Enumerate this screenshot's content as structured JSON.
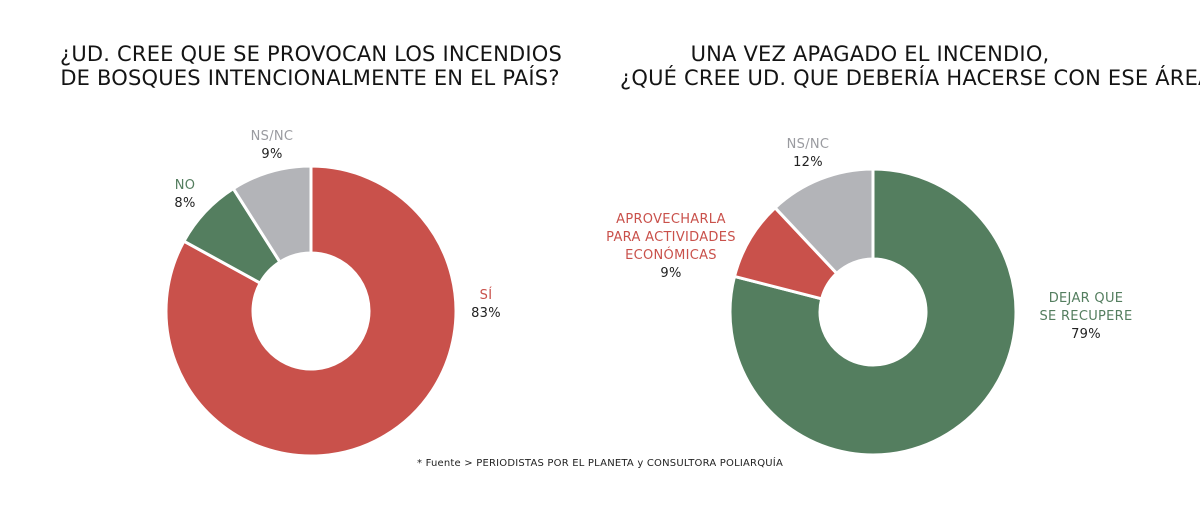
{
  "colors": {
    "red": "#c9514b",
    "green": "#547e5f",
    "gray": "#b3b4b8"
  },
  "chart_data": [
    {
      "type": "pie",
      "title_lines": [
        "¿UD. CREE QUE SE PROVOCAN LOS INCENDIOS",
        "DE BOSQUES INTENCIONALMENTE EN EL PAÍS?"
      ],
      "slices": [
        {
          "label": "SÍ",
          "value": 83,
          "value_label": "83%",
          "color": "#c9514b"
        },
        {
          "label": "NO",
          "value": 8,
          "value_label": "8%",
          "color": "#547e5f"
        },
        {
          "label": "NS/NC",
          "value": 9,
          "value_label": "9%",
          "color": "#b3b4b8"
        }
      ]
    },
    {
      "type": "pie",
      "title_lines": [
        "UNA VEZ APAGADO EL INCENDIO,",
        "¿QUÉ CREE UD. QUE DEBERÍA HACERSE CON ESE ÁREA?"
      ],
      "slices": [
        {
          "label_lines": [
            "DEJAR QUE",
            "SE RECUPERE"
          ],
          "value": 79,
          "value_label": "79%",
          "color": "#547e5f"
        },
        {
          "label_lines": [
            "APROVECHARLA",
            "PARA ACTIVIDADES",
            "ECONÓMICAS"
          ],
          "value": 9,
          "value_label": "9%",
          "color": "#c9514b"
        },
        {
          "label": "NS/NC",
          "value": 12,
          "value_label": "12%",
          "color": "#b3b4b8"
        }
      ]
    }
  ],
  "source": "* Fuente > PERIODISTAS POR EL PLANETA y CONSULTORA POLIARQUÍA"
}
